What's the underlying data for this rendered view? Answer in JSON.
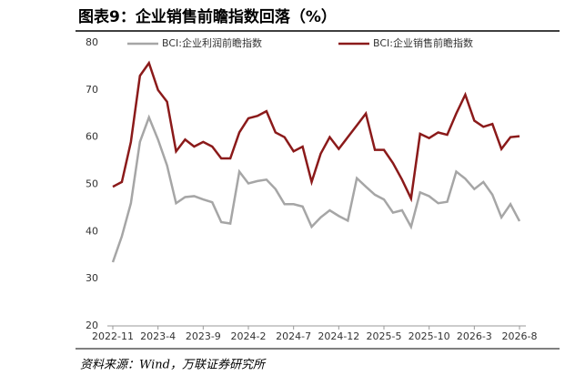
{
  "chart_data": {
    "type": "line",
    "title": "图表9：企业销售前瞻指数回落（%）",
    "source": "资料来源：Wind，万联证券研究所",
    "categories": [
      "2022-11",
      null,
      null,
      null,
      null,
      "2023-4",
      null,
      null,
      null,
      null,
      "2023-9",
      null,
      null,
      null,
      null,
      "2024-2",
      null,
      null,
      null,
      null,
      "2024-7",
      null,
      null,
      null,
      null,
      "2024-12",
      null,
      null,
      null,
      null,
      "2025-5",
      null,
      null,
      null,
      null,
      "2025-10",
      null,
      null,
      null,
      null,
      "2026-3",
      null,
      null,
      null,
      null,
      "2026-8"
    ],
    "series": [
      {
        "name": "BCI:企业利润前瞻指数",
        "color": "#a6a6a6",
        "values": [
          33.5,
          39,
          46,
          59,
          64.2,
          59.5,
          54,
          46,
          47.3,
          47.5,
          46.8,
          46.2,
          42,
          41.7,
          52.7,
          50.2,
          50.7,
          51,
          49,
          45.8,
          45.8,
          45.3,
          41,
          43,
          44.5,
          43.3,
          42.3,
          51.3,
          49.5,
          47.8,
          46.8,
          44,
          44.5,
          41,
          48.3,
          47.5,
          46,
          46.3,
          52.7,
          51.2,
          49,
          50.5,
          47.8,
          43,
          45.8,
          42.2
        ]
      },
      {
        "name": "BCI:企业销售前瞻指数",
        "color": "#8b1a1a",
        "values": [
          49.5,
          50.5,
          59,
          73,
          75.7,
          70,
          67.5,
          57,
          59.5,
          58,
          59,
          58,
          55.5,
          55.5,
          61,
          64,
          64.5,
          65.5,
          61,
          60,
          57,
          58,
          50.5,
          56.5,
          60,
          57.5,
          60,
          62.5,
          65,
          57.3,
          57.3,
          54.5,
          51,
          47,
          60.7,
          59.8,
          61,
          60.5,
          65,
          69,
          63.5,
          62.2,
          62.8,
          57.5,
          60,
          60.2
        ]
      }
    ],
    "ylim": [
      20,
      80
    ],
    "yticks": [
      20,
      30,
      40,
      50,
      60,
      70,
      80
    ]
  }
}
